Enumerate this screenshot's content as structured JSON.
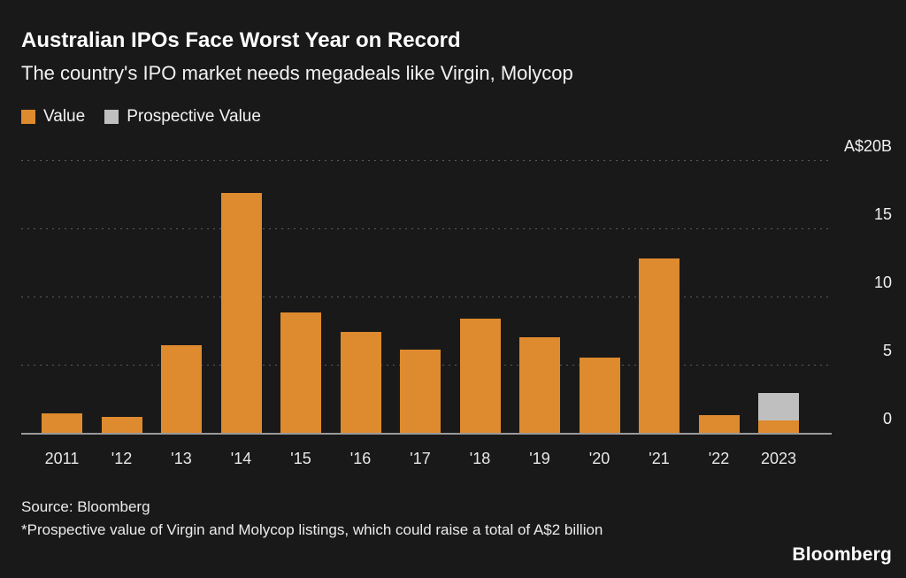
{
  "header": {
    "title": "Australian IPOs Face Worst Year on Record",
    "subtitle": "The country's IPO market needs megadeals like Virgin, Molycop"
  },
  "legend": [
    {
      "label": "Value",
      "color": "#de8a2e"
    },
    {
      "label": "Prospective Value",
      "color": "#bfbfbf"
    }
  ],
  "chart_data": {
    "type": "bar",
    "stacked": true,
    "title": "Australian IPOs Face Worst Year on Record",
    "subtitle": "The country's IPO market needs megadeals like Virgin, Molycop",
    "categories": [
      "2011",
      "'12",
      "'13",
      "'14",
      "'15",
      "'16",
      "'17",
      "'18",
      "'19",
      "'20",
      "'21",
      "'22",
      "2023"
    ],
    "series": [
      {
        "name": "Value",
        "color": "#de8a2e",
        "values": [
          1.4,
          1.2,
          6.4,
          17.6,
          8.8,
          7.4,
          6.1,
          8.4,
          7.0,
          5.5,
          12.8,
          1.3,
          0.9
        ]
      },
      {
        "name": "Prospective Value",
        "color": "#bfbfbf",
        "values": [
          0,
          0,
          0,
          0,
          0,
          0,
          0,
          0,
          0,
          0,
          0,
          0,
          2.0
        ]
      }
    ],
    "xlabel": "",
    "ylabel": "A$ billions",
    "ylim": [
      0,
      20
    ],
    "yticks": [
      0,
      5,
      10,
      15,
      20
    ],
    "ytick_labels": [
      "0",
      "5",
      "10",
      "15",
      "A$20B"
    ],
    "ytick_side": "right",
    "grid": "dotted-horizontal",
    "legend_position": "top-left",
    "background": "#191919"
  },
  "footer": {
    "source": "Source: Bloomberg",
    "footnote": "*Prospective value of Virgin and Molycop listings, which could raise a total of A$2 billion",
    "logo": "Bloomberg"
  }
}
